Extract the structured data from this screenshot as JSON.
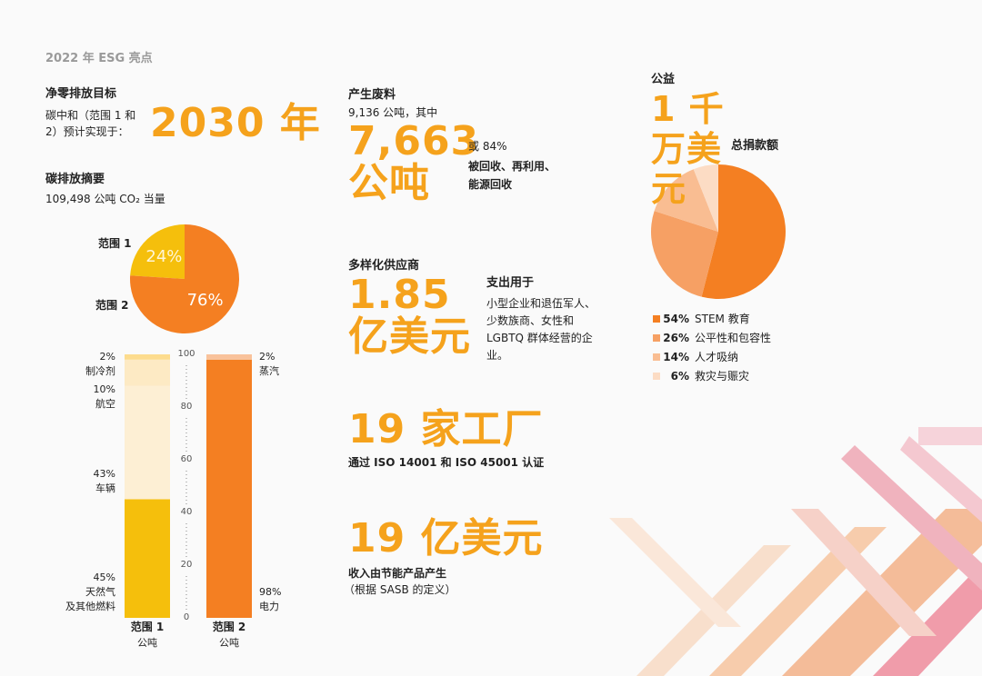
{
  "header": {
    "title": "2022 年 ESG 亮点"
  },
  "net_zero": {
    "title": "净零排放目标",
    "text": "碳中和（范围 1 和 2）预计实现于：",
    "highlight": "2030 年"
  },
  "emissions": {
    "title": "碳排放摘要",
    "subtitle": "109,498 公吨 CO₂ 当量"
  },
  "waste": {
    "title": "产生废料",
    "subtitle": "9,136 公吨，其中",
    "highlight": "7,663 公吨",
    "share": "或 84%",
    "text": "被回收、再利用、能源回收"
  },
  "suppliers": {
    "title": "多样化供应商",
    "highlight": "1.85 亿美元",
    "lead": "支出用于",
    "text": "小型企业和退伍军人、少数族商、女性和 LGBTQ 群体经营的企业。"
  },
  "factories": {
    "highlight": "19 家工厂",
    "text": "通过 ISO 14001 和 ISO 45001 认证"
  },
  "revenue": {
    "highlight": "19 亿美元",
    "text": "收入由节能产品产生",
    "note": "（根据 SASB 的定义）"
  },
  "giving": {
    "title": "公益",
    "highlight": "1 千万美元",
    "lead": "总捐款额"
  },
  "chart_data": [
    {
      "type": "pie",
      "categories": [
        "范围 1",
        "范围 2"
      ],
      "values": [
        24,
        76
      ],
      "value_labels": [
        "24%",
        "76%"
      ],
      "colors": [
        "#f5bf0c",
        "#f47f22"
      ]
    },
    {
      "type": "stacked_bar",
      "categories": [
        "范围 1",
        "范围 2"
      ],
      "unit": "公吨",
      "ylim": [
        0,
        100
      ],
      "yticks": [
        0,
        20,
        40,
        60,
        80,
        100
      ],
      "stacks": [
        [
          {
            "name": [
              "天然气",
              "及其他燃料"
            ],
            "value": 45,
            "label": "45%",
            "color": "#f5bf0c"
          },
          {
            "name": [
              "车辆"
            ],
            "value": 43,
            "label": "43%",
            "color": "#fdefd4"
          },
          {
            "name": [
              "航空"
            ],
            "value": 10,
            "label": "10%",
            "color": "#fdeac4"
          },
          {
            "name": [
              "制冷剂"
            ],
            "value": 2,
            "label": "2%",
            "color": "#fddc8e"
          }
        ],
        [
          {
            "name": [
              "电力"
            ],
            "value": 98,
            "label": "98%",
            "color": "#f47f22"
          },
          {
            "name": [
              "蒸汽"
            ],
            "value": 2,
            "label": "2%",
            "color": "#f9c29b"
          }
        ]
      ]
    },
    {
      "type": "pie",
      "categories": [
        "STEM 教育",
        "公平性和包容性",
        "人才吸纳",
        "救灾与赈灾"
      ],
      "values": [
        54,
        26,
        14,
        6
      ],
      "value_labels": [
        "54%",
        "26%",
        "14%",
        "6%"
      ],
      "colors": [
        "#f47f22",
        "#f6a064",
        "#f9bd92",
        "#fcdcc4"
      ]
    }
  ]
}
